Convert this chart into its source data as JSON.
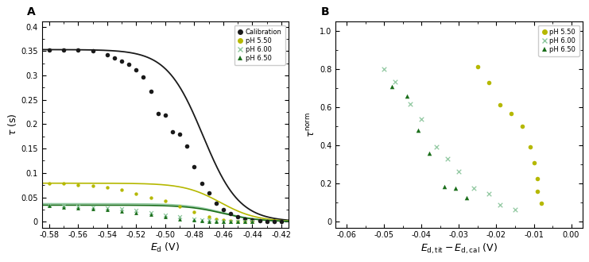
{
  "panel_A": {
    "title": "A",
    "xlabel": "$E_{\\mathrm{d}}$ (V)",
    "ylabel": "$\\tau$ (s)",
    "xlim": [
      -0.585,
      -0.415
    ],
    "ylim": [
      -0.012,
      0.41
    ],
    "xticks": [
      -0.58,
      -0.56,
      -0.54,
      -0.52,
      -0.5,
      -0.48,
      -0.46,
      -0.44,
      -0.42
    ],
    "yticks": [
      0,
      0.05,
      0.1,
      0.15,
      0.2,
      0.25,
      0.3,
      0.35,
      0.4
    ],
    "cal_scatter_x": [
      -0.58,
      -0.57,
      -0.56,
      -0.55,
      -0.54,
      -0.535,
      -0.53,
      -0.525,
      -0.52,
      -0.515,
      -0.51,
      -0.505,
      -0.5,
      -0.495,
      -0.49,
      -0.485,
      -0.48,
      -0.475,
      -0.47,
      -0.465,
      -0.46,
      -0.455,
      -0.45,
      -0.445,
      -0.44,
      -0.435,
      -0.43,
      -0.425,
      -0.42
    ],
    "cal_scatter_y": [
      0.352,
      0.352,
      0.352,
      0.35,
      0.342,
      0.335,
      0.33,
      0.323,
      0.312,
      0.296,
      0.267,
      0.222,
      0.218,
      0.185,
      0.18,
      0.155,
      0.113,
      0.079,
      0.059,
      0.038,
      0.025,
      0.016,
      0.01,
      0.006,
      0.004,
      0.002,
      0.001,
      0.0,
      0.0
    ],
    "ph550_scatter_x": [
      -0.58,
      -0.57,
      -0.56,
      -0.55,
      -0.54,
      -0.53,
      -0.52,
      -0.51,
      -0.5,
      -0.49,
      -0.48,
      -0.47,
      -0.465,
      -0.46,
      -0.455,
      -0.45,
      -0.445,
      -0.44
    ],
    "ph550_scatter_y": [
      0.078,
      0.078,
      0.076,
      0.074,
      0.07,
      0.065,
      0.057,
      0.05,
      0.043,
      0.032,
      0.02,
      0.01,
      0.006,
      0.004,
      0.002,
      0.001,
      0.0,
      0.0
    ],
    "ph600_scatter_x": [
      -0.58,
      -0.57,
      -0.56,
      -0.55,
      -0.54,
      -0.53,
      -0.52,
      -0.51,
      -0.5,
      -0.49,
      -0.48,
      -0.475,
      -0.47,
      -0.465,
      -0.46,
      -0.455,
      -0.45,
      -0.445,
      -0.44
    ],
    "ph600_scatter_y": [
      0.035,
      0.033,
      0.031,
      0.03,
      0.028,
      0.026,
      0.023,
      0.019,
      0.014,
      0.01,
      0.006,
      0.004,
      0.003,
      0.002,
      0.001,
      0.001,
      0.0,
      0.0,
      0.0
    ],
    "ph650_scatter_x": [
      -0.58,
      -0.57,
      -0.56,
      -0.55,
      -0.54,
      -0.53,
      -0.52,
      -0.51,
      -0.5,
      -0.49,
      -0.48,
      -0.475,
      -0.47,
      -0.465,
      -0.46,
      -0.455,
      -0.45,
      -0.445,
      -0.44
    ],
    "ph650_scatter_y": [
      0.033,
      0.03,
      0.028,
      0.026,
      0.025,
      0.022,
      0.019,
      0.015,
      0.01,
      0.006,
      0.003,
      0.002,
      0.001,
      0.001,
      0.0,
      0.0,
      0.0,
      0.0,
      0.0
    ],
    "cal_curve": {
      "x0": -0.474,
      "k": 80,
      "A": 0.353
    },
    "ph550_curve": {
      "x0": -0.462,
      "k": 80,
      "A": 0.079
    },
    "ph600_curve": {
      "x0": -0.46,
      "k": 80,
      "A": 0.037
    },
    "ph650_curve": {
      "x0": -0.46,
      "k": 80,
      "A": 0.034
    },
    "color_cal": "#1a1a1a",
    "color_ph550": "#b5b800",
    "color_ph600": "#90c8a0",
    "color_ph650": "#1a6e1a"
  },
  "panel_B": {
    "title": "B",
    "xlabel": "$E_{\\mathrm{d,tit}} - E_{\\mathrm{d,cal}}$ (V)",
    "ylabel": "$\\tau^{\\mathrm{norm}}$",
    "xlim": [
      -0.063,
      0.003
    ],
    "ylim": [
      -0.03,
      1.05
    ],
    "xticks": [
      -0.06,
      -0.05,
      -0.04,
      -0.03,
      -0.02,
      -0.01,
      0.0
    ],
    "yticks": [
      0,
      0.2,
      0.4,
      0.6,
      0.8,
      1.0
    ],
    "ph550_x": [
      -0.025,
      -0.022,
      -0.019,
      -0.016,
      -0.013,
      -0.011,
      -0.01,
      -0.009,
      -0.009,
      -0.008
    ],
    "ph550_y": [
      0.815,
      0.73,
      0.615,
      0.57,
      0.5,
      0.395,
      0.31,
      0.225,
      0.16,
      0.098
    ],
    "ph600_x": [
      -0.05,
      -0.047,
      -0.043,
      -0.04,
      -0.036,
      -0.033,
      -0.03,
      -0.026,
      -0.022,
      -0.019,
      -0.015
    ],
    "ph600_y": [
      0.8,
      0.735,
      0.62,
      0.54,
      0.395,
      0.33,
      0.265,
      0.175,
      0.148,
      0.09,
      0.065
    ],
    "ph650_x": [
      -0.048,
      -0.044,
      -0.041,
      -0.038,
      -0.034,
      -0.031,
      -0.028
    ],
    "ph650_y": [
      0.71,
      0.66,
      0.48,
      0.36,
      0.185,
      0.178,
      0.126
    ],
    "color_ph550": "#b5b800",
    "color_ph600": "#90c8a0",
    "color_ph650": "#1a6e1a"
  }
}
